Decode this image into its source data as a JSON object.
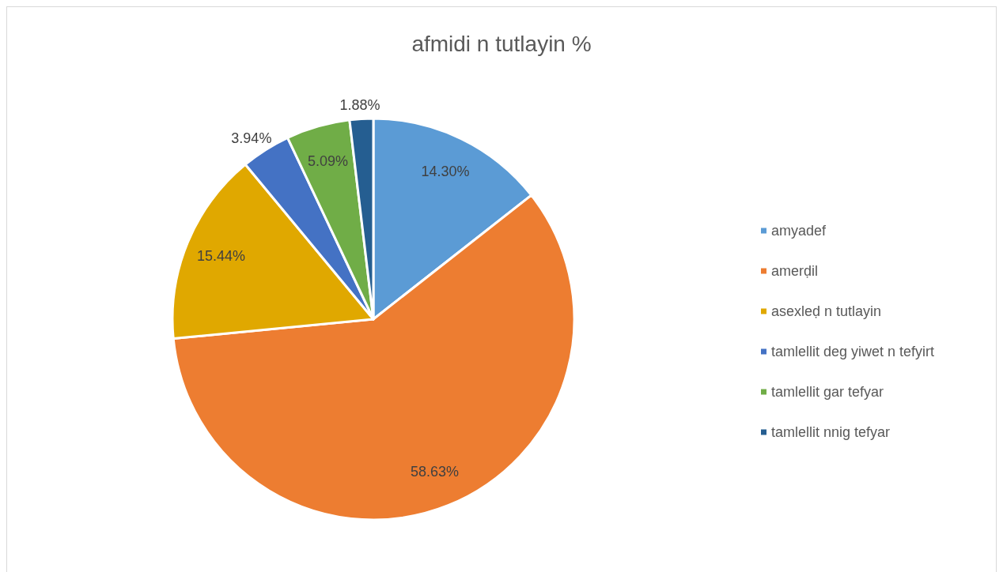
{
  "chart_data": {
    "type": "pie",
    "title": "afmidi n tutlayin %",
    "categories": [
      "amyadef",
      "amerḍil",
      "asexleḍ n tutlayin",
      "tamlellit deg yiwet n tefyirt",
      "tamlellit gar tefyar",
      "tamlellit nnig tefyar"
    ],
    "values": [
      14.3,
      58.63,
      15.44,
      3.94,
      5.09,
      1.88
    ],
    "colors": [
      "#5b9bd5",
      "#ed7d31",
      "#e0a800",
      "#4472c4",
      "#70ad47",
      "#255e91"
    ],
    "value_labels": [
      "14.30%",
      "58.63%",
      "15.44%",
      "3.94%",
      "5.09%",
      "1.88%"
    ],
    "legend": "right"
  }
}
